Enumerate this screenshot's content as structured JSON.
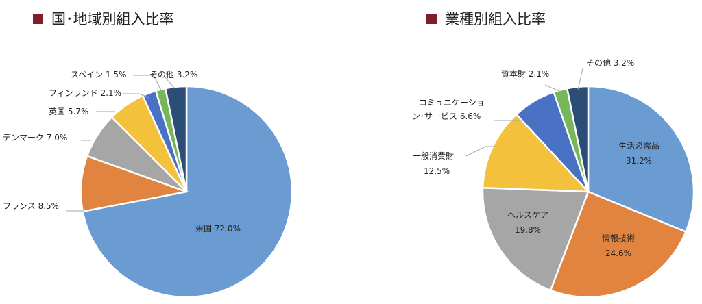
{
  "colors": {
    "title_marker": "#7f1d2b",
    "blue": "#6a9bd1",
    "orange": "#e08440",
    "gray": "#a6a6a6",
    "yellow": "#f4c13d",
    "dark_blue": "#4a72c4",
    "green": "#77b65a",
    "navy": "#2c4d75",
    "leader": "#a6a6a6"
  },
  "chart_data": [
    {
      "type": "pie",
      "title": "国･地域別組入比率",
      "start_angle_deg": 0,
      "direction": "clockwise",
      "slices": [
        {
          "label": "米国",
          "value": 72.0,
          "display": "72.0%",
          "color": "#6a9bd1"
        },
        {
          "label": "フランス",
          "value": 8.5,
          "display": "8.5%",
          "color": "#e08440"
        },
        {
          "label": "デンマーク",
          "value": 7.0,
          "display": "7.0%",
          "color": "#a6a6a6"
        },
        {
          "label": "英国",
          "value": 5.7,
          "display": "5.7%",
          "color": "#f4c13d"
        },
        {
          "label": "フィンランド",
          "value": 2.1,
          "display": "2.1%",
          "color": "#4a72c4"
        },
        {
          "label": "スペイン",
          "value": 1.5,
          "display": "1.5%",
          "color": "#77b65a"
        },
        {
          "label": "その他",
          "value": 3.2,
          "display": "3.2%",
          "color": "#2c4d75"
        }
      ]
    },
    {
      "type": "pie",
      "title": "業種別組入比率",
      "start_angle_deg": 0,
      "direction": "clockwise",
      "slices": [
        {
          "label": "生活必需品",
          "value": 31.2,
          "display": "31.2%",
          "color": "#6a9bd1"
        },
        {
          "label": "情報技術",
          "value": 24.6,
          "display": "24.6%",
          "color": "#e08440"
        },
        {
          "label": "ヘルスケア",
          "value": 19.8,
          "display": "19.8%",
          "color": "#a6a6a6"
        },
        {
          "label": "一般消費財",
          "value": 12.5,
          "display": "12.5%",
          "color": "#f4c13d"
        },
        {
          "label": "コミュニケーション･サービス",
          "value": 6.6,
          "display": "6.6%",
          "color": "#4a72c4"
        },
        {
          "label": "資本財",
          "value": 2.1,
          "display": "2.1%",
          "color": "#77b65a"
        },
        {
          "label": "その他",
          "value": 3.2,
          "display": "3.2%",
          "color": "#2c4d75"
        }
      ]
    }
  ]
}
